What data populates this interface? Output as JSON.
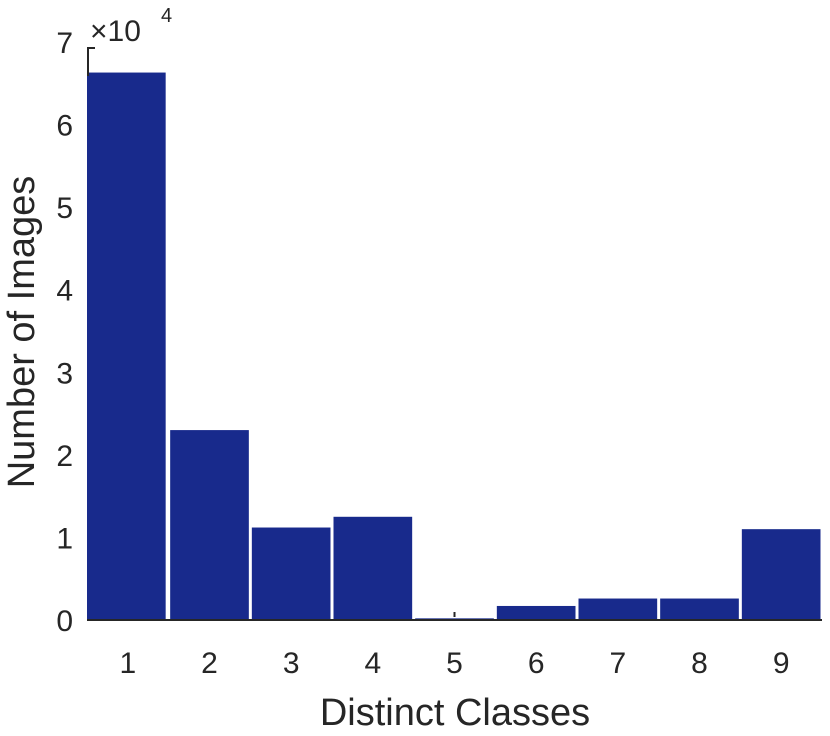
{
  "chart_data": {
    "type": "bar",
    "categories": [
      "1",
      "2",
      "3",
      "4",
      "5",
      "6",
      "7",
      "8",
      "9"
    ],
    "values": [
      66300,
      23000,
      11200,
      12500,
      200,
      1700,
      2600,
      2600,
      11000
    ],
    "xlabel": "Distinct Classes",
    "ylabel": "Number of Images",
    "ylim": [
      0,
      70000
    ],
    "y_ticks": [
      0,
      10000,
      20000,
      30000,
      40000,
      50000,
      60000,
      70000
    ],
    "y_tick_labels": [
      "0",
      "1",
      "2",
      "3",
      "4",
      "5",
      "6",
      "7"
    ],
    "y_multiplier_base": "×10",
    "y_multiplier_exponent": "4",
    "bar_color": "#182a8c",
    "axis_color": "#262626",
    "grid": false,
    "legend": "none"
  }
}
